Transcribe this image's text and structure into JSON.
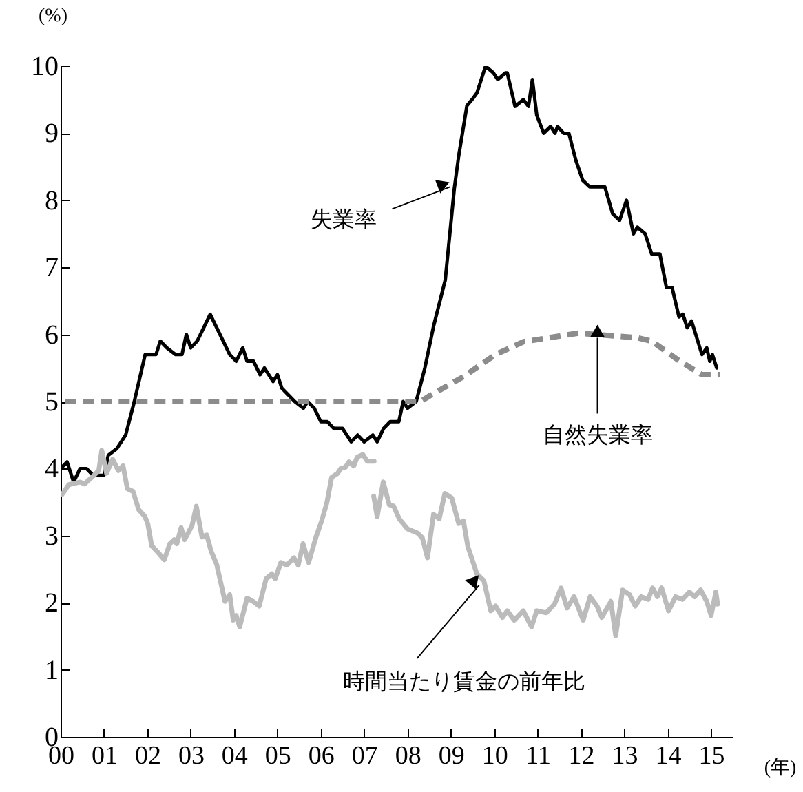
{
  "chart_data": {
    "type": "line",
    "xlabel": "(年)",
    "ylabel": "(%)",
    "xlim": [
      2000,
      2015.5
    ],
    "ylim": [
      0,
      10
    ],
    "xticks": [
      {
        "value": 2000,
        "label": "00"
      },
      {
        "value": 2001,
        "label": "01"
      },
      {
        "value": 2002,
        "label": "02"
      },
      {
        "value": 2003,
        "label": "03"
      },
      {
        "value": 2004,
        "label": "04"
      },
      {
        "value": 2005,
        "label": "05"
      },
      {
        "value": 2006,
        "label": "06"
      },
      {
        "value": 2007,
        "label": "07"
      },
      {
        "value": 2008,
        "label": "08"
      },
      {
        "value": 2009,
        "label": "09"
      },
      {
        "value": 2010,
        "label": "10"
      },
      {
        "value": 2011,
        "label": "11"
      },
      {
        "value": 2012,
        "label": "12"
      },
      {
        "value": 2013,
        "label": "13"
      },
      {
        "value": 2014,
        "label": "14"
      },
      {
        "value": 2015,
        "label": "15"
      }
    ],
    "yticks": [
      0,
      1,
      2,
      3,
      4,
      5,
      6,
      7,
      8,
      9,
      10
    ],
    "grid": false,
    "marker": "none",
    "series": [
      {
        "color": "#000000",
        "line_style": "solid",
        "x": [
          2000.0,
          2000.15,
          2000.3,
          2000.45,
          2000.6,
          2000.75,
          2001.0,
          2001.1,
          2001.3,
          2001.5,
          2001.7,
          2001.95,
          2002.2,
          2002.3,
          2002.45,
          2002.65,
          2002.8,
          2002.9,
          2003.0,
          2003.15,
          2003.3,
          2003.45,
          2003.6,
          2003.75,
          2003.9,
          2004.05,
          2004.2,
          2004.3,
          2004.45,
          2004.6,
          2004.7,
          2004.8,
          2004.9,
          2005.0,
          2005.1,
          2005.25,
          2005.4,
          2005.6,
          2005.7,
          2005.85,
          2006.0,
          2006.15,
          2006.3,
          2006.5,
          2006.7,
          2006.85,
          2007.0,
          2007.2,
          2007.3,
          2007.45,
          2007.6,
          2007.8,
          2007.9,
          2008.0,
          2008.2,
          2008.4,
          2008.6,
          2008.87,
          2009.08,
          2009.18,
          2009.37,
          2009.5,
          2009.6,
          2009.8,
          2009.98,
          2010.08,
          2010.26,
          2010.3,
          2010.48,
          2010.67,
          2010.79,
          2010.88,
          2010.98,
          2011.14,
          2011.3,
          2011.4,
          2011.46,
          2011.6,
          2011.72,
          2011.88,
          2012.04,
          2012.2,
          2012.55,
          2012.73,
          2012.89,
          2013.05,
          2013.21,
          2013.3,
          2013.48,
          2013.63,
          2013.82,
          2013.97,
          2014.1,
          2014.26,
          2014.35,
          2014.45,
          2014.55,
          2014.79,
          2014.9,
          2014.97,
          2015.03,
          2015.13
        ],
        "values": [
          4.0,
          4.1,
          3.8,
          4.0,
          4.0,
          3.9,
          3.9,
          4.2,
          4.3,
          4.5,
          5.0,
          5.7,
          5.7,
          5.9,
          5.8,
          5.7,
          5.7,
          6.0,
          5.8,
          5.9,
          6.1,
          6.3,
          6.1,
          5.9,
          5.7,
          5.6,
          5.8,
          5.6,
          5.6,
          5.4,
          5.5,
          5.4,
          5.3,
          5.4,
          5.2,
          5.1,
          5.0,
          4.9,
          5.0,
          4.9,
          4.7,
          4.7,
          4.6,
          4.6,
          4.4,
          4.5,
          4.4,
          4.5,
          4.4,
          4.6,
          4.7,
          4.7,
          5.0,
          4.9,
          5.0,
          5.5,
          6.12,
          6.81,
          8.18,
          8.66,
          9.41,
          9.51,
          9.6,
          10.0,
          9.9,
          9.8,
          9.9,
          9.9,
          9.4,
          9.5,
          9.4,
          9.8,
          9.27,
          9.0,
          9.1,
          9.0,
          9.1,
          9.0,
          9.0,
          8.6,
          8.3,
          8.2,
          8.2,
          7.8,
          7.7,
          8.0,
          7.5,
          7.6,
          7.5,
          7.2,
          7.2,
          6.7,
          6.7,
          6.26,
          6.3,
          6.1,
          6.2,
          5.7,
          5.8,
          5.6,
          5.7,
          5.5
        ]
      },
      {
        "color": "#8c8c8c",
        "line_style": "dashed",
        "x": [
          2000.1,
          2008.3,
          2008.55,
          2009.29,
          2010.03,
          2010.67,
          2011.94,
          2013.3,
          2013.63,
          2014.26,
          2014.79,
          2015.2
        ],
        "values": [
          5.0,
          5.0,
          5.1,
          5.37,
          5.7,
          5.89,
          6.02,
          5.95,
          5.9,
          5.61,
          5.4,
          5.4
        ]
      },
      {
        "color": "#bbbbbb",
        "line_style": "solid",
        "x": [
          2000.03,
          2000.19,
          2000.45,
          2000.55,
          2000.77,
          2000.88,
          2000.95,
          2001.06,
          2001.2,
          2001.33,
          2001.44,
          2001.54,
          2001.67,
          2001.8,
          2001.94,
          2002.01,
          2002.1,
          2002.26,
          2002.39,
          2002.52,
          2002.62,
          2002.68,
          2002.78,
          2002.86,
          2003.03,
          2003.13,
          2003.26,
          2003.37,
          2003.47,
          2003.6,
          2003.79,
          2003.9,
          2003.98,
          2004.05,
          2004.13,
          2004.3,
          2004.44,
          2004.58,
          2004.74,
          2004.87,
          2004.95,
          2005.08,
          2005.22,
          2005.38,
          2005.48,
          2005.59,
          2005.72,
          2005.89,
          2006.02,
          2006.14,
          2006.25,
          2006.39,
          2006.46,
          2006.57,
          2006.65,
          2006.76,
          2006.84,
          2006.97,
          2007.07,
          2007.23
        ],
        "values": [
          3.61,
          3.76,
          3.8,
          3.77,
          3.9,
          3.97,
          4.27,
          3.93,
          4.14,
          3.97,
          4.04,
          3.7,
          3.66,
          3.39,
          3.29,
          3.18,
          2.85,
          2.74,
          2.64,
          2.88,
          2.94,
          2.88,
          3.12,
          2.94,
          3.15,
          3.44,
          2.98,
          3.01,
          2.77,
          2.57,
          2.02,
          2.12,
          1.74,
          1.81,
          1.64,
          2.07,
          2.02,
          1.95,
          2.36,
          2.43,
          2.36,
          2.6,
          2.56,
          2.67,
          2.56,
          2.88,
          2.6,
          2.98,
          3.22,
          3.49,
          3.87,
          3.93,
          4.0,
          4.02,
          4.1,
          4.04,
          4.17,
          4.21,
          4.11,
          4.11
        ]
      },
      {
        "color": "#bbbbbb",
        "line_style": "solid",
        "x": [
          2007.22,
          2007.3,
          2007.44,
          2007.58,
          2007.68,
          2007.81,
          2008.0,
          2008.23,
          2008.34,
          2008.46,
          2008.6,
          2008.73,
          2008.86,
          2009.02,
          2009.18,
          2009.29,
          2009.39,
          2009.6,
          2009.76,
          2009.92,
          2010.03,
          2010.19,
          2010.3,
          2010.46,
          2010.67,
          2010.86,
          2010.98,
          2011.2,
          2011.39,
          2011.54,
          2011.68,
          2011.84,
          2012.05,
          2012.21,
          2012.37,
          2012.48,
          2012.69,
          2012.8,
          2012.96,
          2013.12,
          2013.25,
          2013.39,
          2013.55,
          2013.65,
          2013.76,
          2013.86,
          2014.02,
          2014.18,
          2014.34,
          2014.5,
          2014.62,
          2014.76,
          2014.9,
          2015.0,
          2015.11,
          2015.15
        ],
        "values": [
          3.59,
          3.28,
          3.8,
          3.46,
          3.44,
          3.25,
          3.1,
          3.04,
          2.97,
          2.67,
          3.32,
          3.25,
          3.63,
          3.56,
          3.18,
          3.22,
          2.84,
          2.43,
          2.33,
          1.88,
          1.95,
          1.78,
          1.88,
          1.74,
          1.88,
          1.64,
          1.88,
          1.85,
          1.98,
          2.22,
          1.92,
          2.09,
          1.74,
          2.09,
          1.95,
          1.78,
          2.02,
          1.51,
          2.19,
          2.12,
          1.95,
          2.09,
          2.05,
          2.22,
          2.09,
          2.22,
          1.88,
          2.09,
          2.05,
          2.16,
          2.09,
          2.19,
          2.02,
          1.81,
          2.16,
          1.98
        ]
      }
    ],
    "annotations": [
      {
        "text": "失業率",
        "x": 2008.98,
        "y": 8.2
      },
      {
        "text": "自然失業率",
        "x": 2012.38,
        "y": 5.95
      },
      {
        "text": "時間当たり賃金の前年比",
        "x": 2009.65,
        "y": 2.26
      }
    ]
  }
}
